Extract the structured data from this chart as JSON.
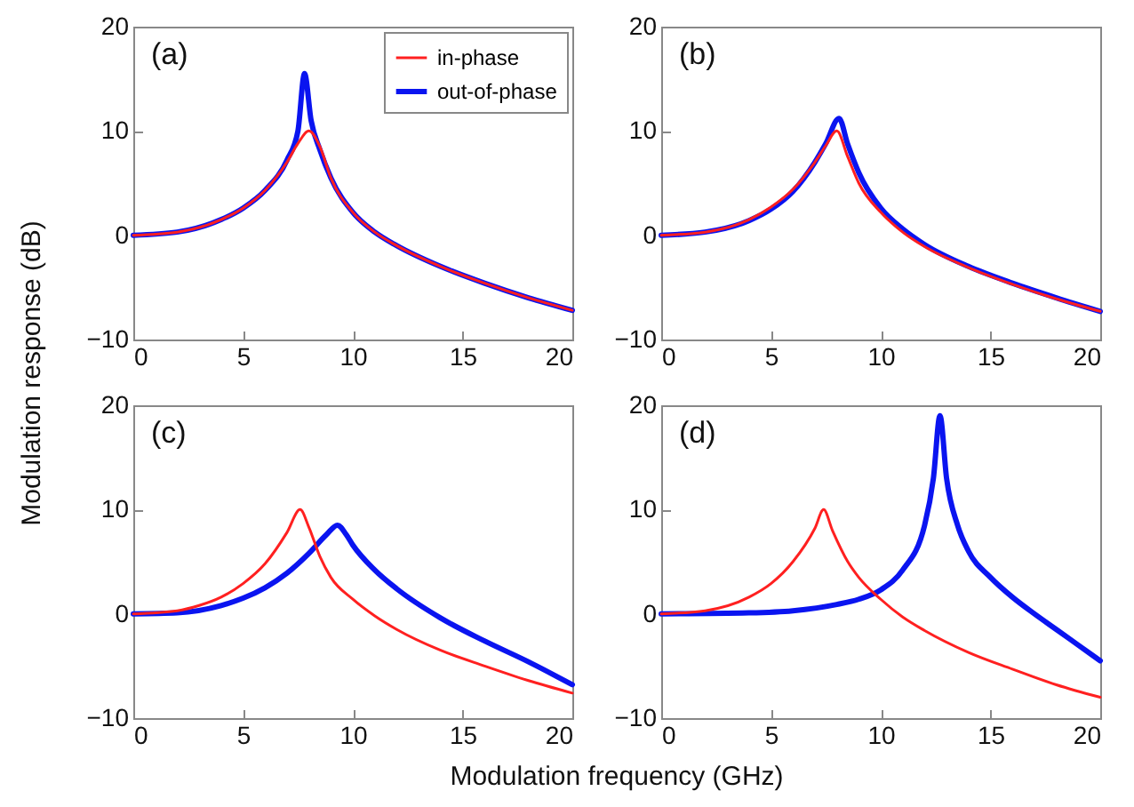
{
  "chart_data": [
    {
      "type": "line",
      "ylabel": "Modulation response (dB)",
      "annotations": [
        "(a)"
      ],
      "xlim": [
        0,
        20
      ],
      "ylim": [
        -10,
        20
      ],
      "xticks": [
        0,
        5,
        10,
        15,
        20
      ],
      "yticks": [
        -10,
        0,
        10,
        20
      ],
      "legend": "top right",
      "grid": false,
      "series": [
        {
          "name": "in-phase",
          "color": "#ff2020",
          "x": [
            0,
            2,
            4,
            5,
            6,
            7,
            7.5,
            8,
            8.5,
            9,
            10,
            11,
            12,
            14,
            16,
            18,
            20
          ],
          "values": [
            0,
            0.3,
            1.5,
            2.6,
            4.3,
            7,
            8.8,
            10,
            8.5,
            5.5,
            2.2,
            0.3,
            -1,
            -3,
            -4.6,
            -6,
            -7.2
          ]
        },
        {
          "name": "out-of-phase",
          "color": "#0a14f0",
          "x": [
            0,
            2,
            4,
            5,
            6,
            7,
            7.5,
            7.8,
            8.1,
            8.5,
            9,
            10,
            11,
            12,
            14,
            16,
            18,
            20
          ],
          "values": [
            0,
            0.3,
            1.5,
            2.6,
            4.3,
            7.2,
            10,
            15.5,
            11,
            8.2,
            5.5,
            2.2,
            0.3,
            -1,
            -3,
            -4.6,
            -6,
            -7.2
          ]
        }
      ]
    },
    {
      "type": "line",
      "annotations": [
        "(b)"
      ],
      "xlim": [
        0,
        20
      ],
      "ylim": [
        -10,
        20
      ],
      "xticks": [
        0,
        5,
        10,
        15,
        20
      ],
      "yticks": [
        -10,
        0,
        10,
        20
      ],
      "grid": false,
      "series": [
        {
          "color": "#ff2020",
          "x": [
            0,
            2,
            4,
            5,
            6,
            7,
            7.5,
            8,
            8.5,
            9,
            10,
            11,
            12,
            14,
            16,
            18,
            20
          ],
          "values": [
            0,
            0.3,
            1.5,
            2.7,
            4.4,
            7,
            8.6,
            10,
            7.5,
            5,
            2.2,
            0.3,
            -1.1,
            -3.1,
            -4.7,
            -6.1,
            -7.3
          ]
        },
        {
          "color": "#0a14f0",
          "x": [
            0,
            2,
            4,
            5,
            6,
            7,
            7.5,
            8.1,
            8.5,
            9,
            10,
            11,
            12,
            14,
            16,
            18,
            20
          ],
          "values": [
            0,
            0.3,
            1.4,
            2.5,
            4.2,
            7,
            8.8,
            11.2,
            8.7,
            6,
            2.6,
            0.6,
            -0.9,
            -3,
            -4.6,
            -6,
            -7.3
          ]
        }
      ]
    },
    {
      "type": "line",
      "xlabel": "Modulation frequency (GHz)",
      "annotations": [
        "(c)"
      ],
      "xlim": [
        0,
        20
      ],
      "ylim": [
        -10,
        20
      ],
      "xticks": [
        0,
        5,
        10,
        15,
        20
      ],
      "yticks": [
        -10,
        0,
        10,
        20
      ],
      "grid": false,
      "series": [
        {
          "color": "#ff2020",
          "x": [
            0,
            2,
            3,
            4,
            5,
            6,
            7,
            7.6,
            8,
            8.5,
            9,
            10,
            11,
            12,
            14,
            16,
            18,
            20
          ],
          "values": [
            0,
            0.3,
            0.8,
            1.6,
            2.9,
            4.8,
            7.8,
            10,
            8.3,
            5.5,
            3.5,
            1.4,
            -0.2,
            -1.5,
            -3.5,
            -5,
            -6.4,
            -7.6
          ]
        },
        {
          "color": "#0a14f0",
          "x": [
            0,
            2,
            4,
            5,
            6,
            7,
            8,
            8.8,
            9.3,
            9.7,
            10,
            11,
            12,
            14,
            16,
            18,
            20
          ],
          "values": [
            0,
            0.1,
            0.8,
            1.5,
            2.5,
            3.9,
            5.8,
            7.6,
            8.5,
            7.6,
            6.6,
            4.2,
            2.4,
            -0.4,
            -2.6,
            -4.6,
            -6.8
          ]
        }
      ]
    },
    {
      "type": "line",
      "annotations": [
        "(d)"
      ],
      "xlim": [
        0,
        20
      ],
      "ylim": [
        -10,
        20
      ],
      "xticks": [
        0,
        5,
        10,
        15,
        20
      ],
      "yticks": [
        -10,
        0,
        10,
        20
      ],
      "grid": false,
      "series": [
        {
          "color": "#ff2020",
          "x": [
            0,
            2,
            4,
            5,
            6,
            7,
            7.4,
            7.8,
            8.5,
            9,
            10,
            11,
            12,
            14,
            16,
            18,
            20
          ],
          "values": [
            0,
            0.3,
            1.6,
            2.9,
            5,
            8.2,
            10,
            8,
            5,
            3.5,
            1.4,
            -0.3,
            -1.6,
            -3.7,
            -5.3,
            -6.8,
            -8
          ]
        },
        {
          "color": "#0a14f0",
          "x": [
            0,
            4,
            6,
            8,
            9,
            10,
            11,
            12,
            12.4,
            12.7,
            13,
            13.5,
            14,
            15,
            16,
            17,
            18,
            19,
            20
          ],
          "values": [
            0,
            0.1,
            0.3,
            0.9,
            1.4,
            2.3,
            4.2,
            8.5,
            13,
            19,
            13,
            8.5,
            6,
            3.5,
            1.6,
            0,
            -1.5,
            -3,
            -4.5
          ]
        }
      ]
    }
  ]
}
